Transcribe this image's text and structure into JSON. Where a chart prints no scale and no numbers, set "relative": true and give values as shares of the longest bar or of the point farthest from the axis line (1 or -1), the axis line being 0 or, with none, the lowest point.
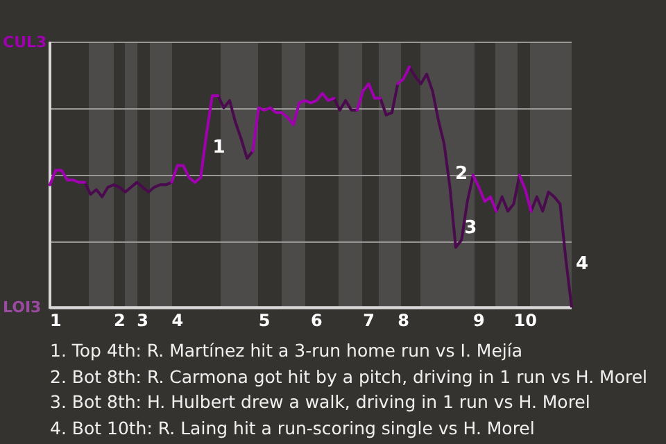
{
  "chart_data": {
    "type": "line",
    "relative": true,
    "categories": [
      null,
      "1",
      null,
      null,
      null,
      null,
      null,
      null,
      null,
      null,
      null,
      null,
      "2",
      null,
      null,
      null,
      "3",
      null,
      null,
      null,
      null,
      null,
      "4",
      null,
      null,
      null,
      null,
      null,
      null,
      null,
      null,
      null,
      null,
      null,
      null,
      null,
      null,
      "5",
      null,
      null,
      null,
      null,
      null,
      null,
      null,
      null,
      "6",
      null,
      null,
      null,
      null,
      null,
      null,
      null,
      null,
      "7",
      null,
      null,
      null,
      null,
      null,
      "8",
      null,
      null,
      null,
      null,
      null,
      null,
      null,
      null,
      null,
      null,
      null,
      null,
      "9",
      null,
      null,
      null,
      null,
      null,
      null,
      null,
      "10",
      null,
      null,
      null,
      null,
      null,
      null,
      null,
      null
    ],
    "grid": "y",
    "legend": false,
    "marker": "none",
    "line_style": "solid",
    "series": [
      {
        "color": "#a000b0",
        "values": [
          0.51,
          0.57,
          0.57,
          0.53,
          0.53,
          0.52,
          0.52,
          null,
          null,
          null,
          null,
          null,
          null,
          null,
          null,
          null,
          null,
          null,
          null,
          null,
          null,
          0.52,
          0.59,
          0.59,
          0.54,
          0.52,
          0.54,
          0.72,
          0.88,
          0.88,
          null,
          null,
          null,
          null,
          null,
          0.65,
          0.83,
          0.82,
          0.83,
          0.81,
          0.81,
          0.79,
          0.76,
          0.85,
          0.86,
          0.85,
          0.86,
          0.89,
          0.86,
          0.87,
          null,
          null,
          null,
          0.82,
          0.9,
          0.93,
          0.87,
          0.87,
          null,
          null,
          0.93,
          0.95,
          1,
          null,
          null,
          null,
          null,
          null,
          null,
          null,
          null,
          null,
          null,
          0.55,
          0.5,
          0.44,
          0.46,
          0.4,
          null,
          null,
          null,
          0.55,
          0.49,
          0.4,
          null,
          null,
          null,
          null,
          null,
          null,
          null
        ]
      },
      {
        "color": "#4a0a4e",
        "values": [
          null,
          null,
          null,
          null,
          null,
          null,
          0.52,
          0.47,
          0.49,
          0.46,
          0.5,
          0.51,
          0.5,
          0.48,
          0.5,
          0.52,
          0.5,
          0.48,
          0.5,
          0.51,
          0.51,
          0.52,
          null,
          null,
          null,
          null,
          null,
          null,
          null,
          0.88,
          0.83,
          0.86,
          0.77,
          0.7,
          0.62,
          0.65,
          null,
          null,
          null,
          null,
          null,
          null,
          null,
          null,
          null,
          null,
          null,
          null,
          null,
          0.87,
          0.82,
          0.86,
          0.82,
          0.82,
          null,
          null,
          null,
          0.87,
          0.8,
          0.81,
          0.93,
          null,
          1,
          0.96,
          0.93,
          0.97,
          0.9,
          0.78,
          0.68,
          0.5,
          0.25,
          0.28,
          0.44,
          0.55,
          null,
          null,
          null,
          0.4,
          0.46,
          0.4,
          0.43,
          0.55,
          null,
          0.4,
          0.46,
          0.4,
          0.48,
          0.46,
          0.43,
          0.2,
          0
        ]
      }
    ],
    "annotations": [
      "CUL3",
      "LOI3",
      "1",
      "2",
      "3",
      "4",
      "1. Top 4th: R. Martínez hit a 3-run home run vs I. Mejía",
      "2. Bot 8th: R. Carmona got hit by a pitch, driving in 1 run vs H. Morel",
      "3. Bot 8th: H. Hulbert drew a walk, driving in 1 run vs H. Morel",
      "4. Bot 10th: R. Laing hit a run-scoring single vs H. Morel"
    ]
  }
}
